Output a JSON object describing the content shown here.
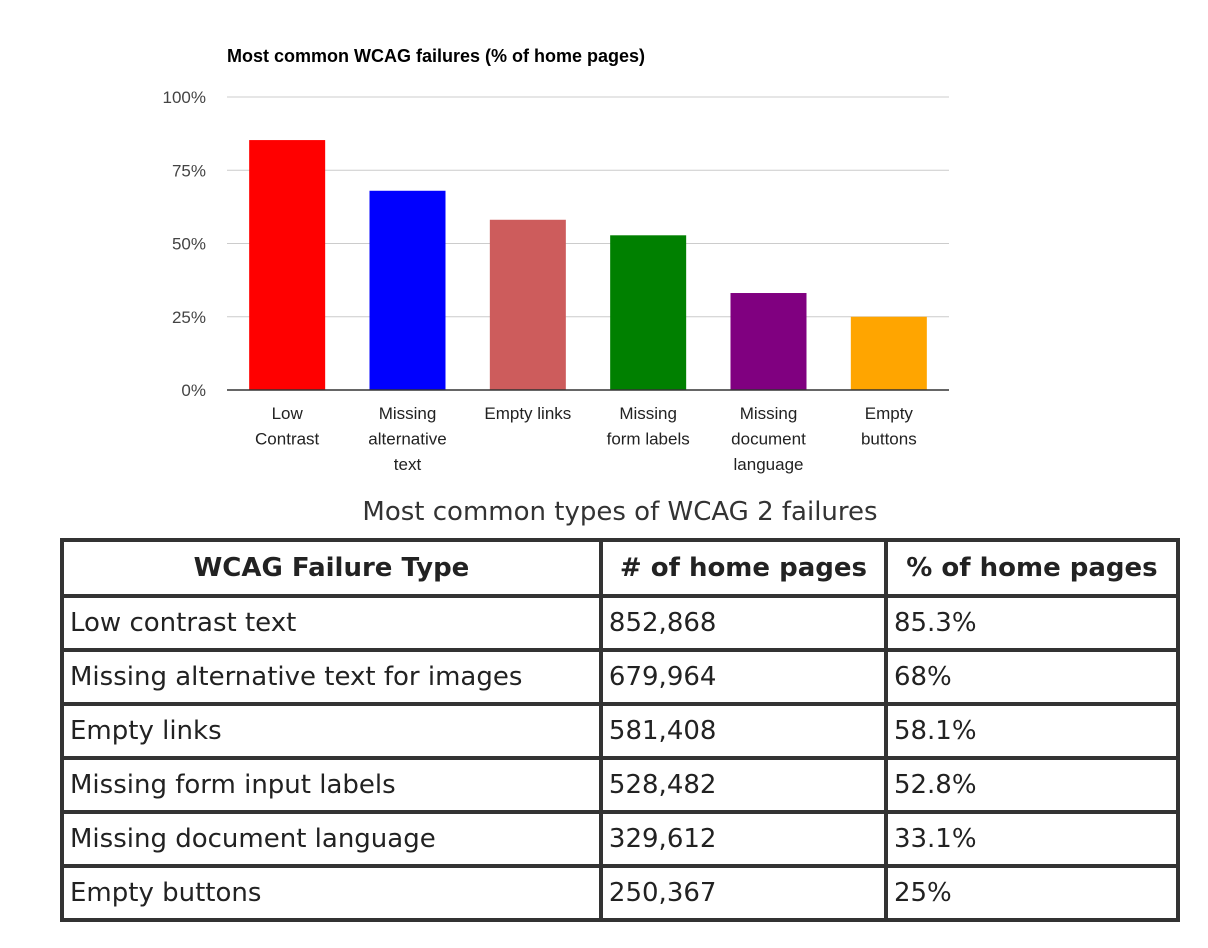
{
  "chart_data": {
    "type": "bar",
    "title": "Most common WCAG failures (% of home pages)",
    "xlabel": "",
    "ylabel": "",
    "ylim": [
      0,
      100
    ],
    "grid": true,
    "y_ticks": [
      {
        "value": 0,
        "label": "0%"
      },
      {
        "value": 25,
        "label": "25%"
      },
      {
        "value": 50,
        "label": "50%"
      },
      {
        "value": 75,
        "label": "75%"
      },
      {
        "value": 100,
        "label": "100%"
      }
    ],
    "categories": [
      {
        "lines": [
          "Low",
          "Contrast"
        ],
        "value": 85.3,
        "color": "#ff0000"
      },
      {
        "lines": [
          "Missing",
          "alternative",
          "text"
        ],
        "value": 68,
        "color": "#0000ff"
      },
      {
        "lines": [
          "Empty links"
        ],
        "value": 58.1,
        "color": "#cd5c5c"
      },
      {
        "lines": [
          "Missing",
          "form labels"
        ],
        "value": 52.8,
        "color": "#008000"
      },
      {
        "lines": [
          "Missing",
          "document",
          "language"
        ],
        "value": 33.1,
        "color": "#800080"
      },
      {
        "lines": [
          "Empty",
          "buttons"
        ],
        "value": 25,
        "color": "#ffa500"
      }
    ]
  },
  "caption": "Most common types of WCAG 2 failures",
  "table": {
    "headers": [
      "WCAG Failure Type",
      "# of home pages",
      "% of home pages"
    ],
    "rows": [
      [
        "Low contrast text",
        "852,868",
        "85.3%"
      ],
      [
        "Missing alternative text for images",
        "679,964",
        "68%"
      ],
      [
        "Empty links",
        "581,408",
        "58.1%"
      ],
      [
        "Missing form input labels",
        "528,482",
        "52.8%"
      ],
      [
        "Missing document language",
        "329,612",
        "33.1%"
      ],
      [
        "Empty buttons",
        "250,367",
        "25%"
      ]
    ]
  }
}
